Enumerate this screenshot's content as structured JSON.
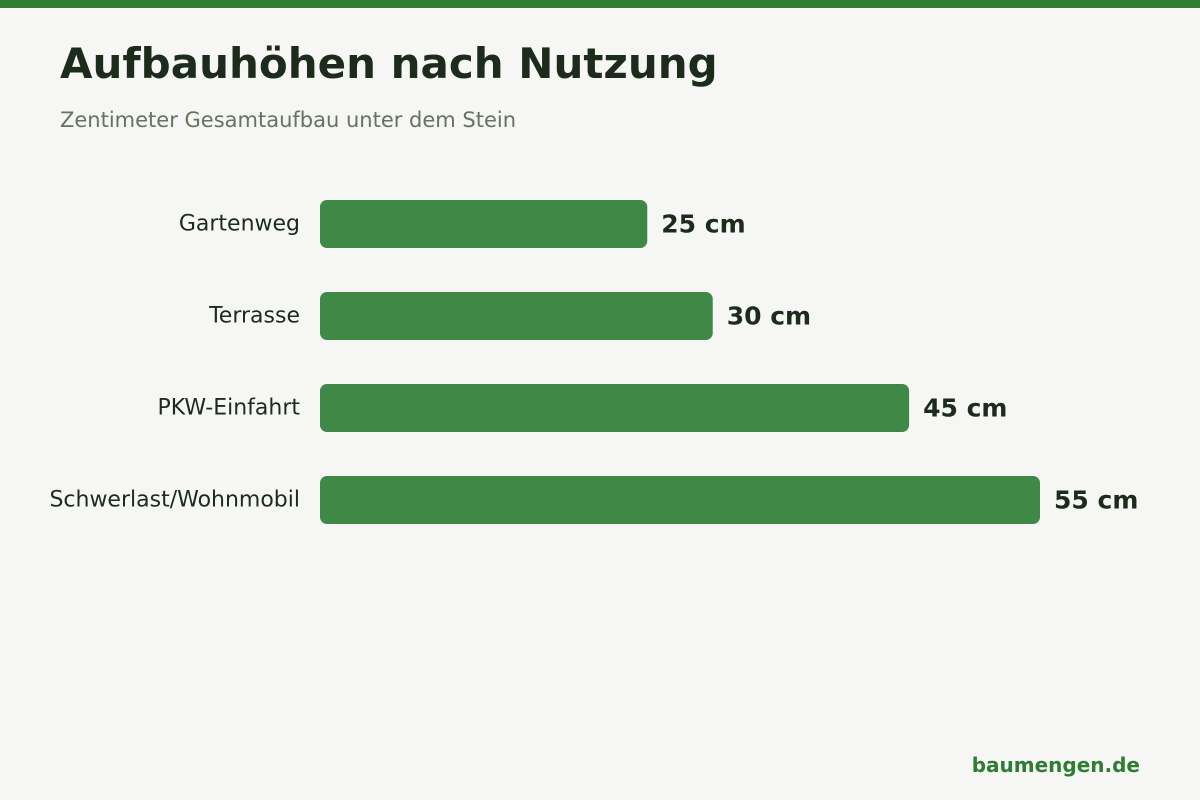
{
  "header": {
    "title": "Aufbauhöhen nach Nutzung",
    "subtitle": "Zentimeter Gesamtaufbau unter dem Stein"
  },
  "footer": {
    "source": "baumengen.de"
  },
  "colors": {
    "accent": "#2e7d32",
    "bar": "#3f8845",
    "text": "#1c2b1c",
    "muted": "#66735f",
    "background": "#f6f6f4"
  },
  "chart_data": {
    "type": "bar",
    "orientation": "horizontal",
    "title": "Aufbauhöhen nach Nutzung",
    "subtitle": "Zentimeter Gesamtaufbau unter dem Stein",
    "categories": [
      "Gartenweg",
      "Terrasse",
      "PKW-Einfahrt",
      "Schwerlast/Wohnmobil"
    ],
    "values": [
      25,
      30,
      45,
      55
    ],
    "value_labels": [
      "25 cm",
      "30 cm",
      "45 cm",
      "55 cm"
    ],
    "unit": "cm",
    "xlim": [
      0,
      55
    ],
    "grid": false,
    "legend": "none"
  }
}
